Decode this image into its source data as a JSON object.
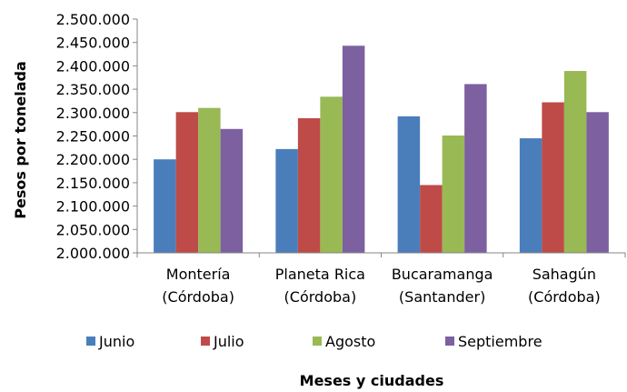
{
  "chart_data": {
    "type": "bar",
    "title": "",
    "xlabel": "Meses y ciudades",
    "ylabel": "Pesos por tonelada",
    "categories": [
      [
        "Montería",
        "(Córdoba)"
      ],
      [
        "Planeta Rica",
        "(Córdoba)"
      ],
      [
        "Bucaramanga",
        "(Santander)"
      ],
      [
        "Sahagún",
        "(Córdoba)"
      ]
    ],
    "series": [
      {
        "name": "Junio",
        "color": "#4A7EBB",
        "values": [
          2200000,
          2222000,
          2292000,
          2245000
        ]
      },
      {
        "name": "Julio",
        "color": "#BE4B48",
        "values": [
          2301000,
          2288000,
          2145000,
          2322000
        ]
      },
      {
        "name": "Agosto",
        "color": "#98B954",
        "values": [
          2310000,
          2334000,
          2251000,
          2389000
        ]
      },
      {
        "name": "Septiembre",
        "color": "#7D60A0",
        "values": [
          2265000,
          2443000,
          2361000,
          2301000
        ]
      }
    ],
    "ylim": [
      2000000,
      2500000
    ],
    "ytick_step": 50000,
    "yticks": [
      "2.000.000",
      "2.050.000",
      "2.100.000",
      "2.150.000",
      "2.200.000",
      "2.250.000",
      "2.300.000",
      "2.350.000",
      "2.400.000",
      "2.450.000",
      "2.500.000"
    ],
    "grid": false,
    "legend": "bottom"
  }
}
